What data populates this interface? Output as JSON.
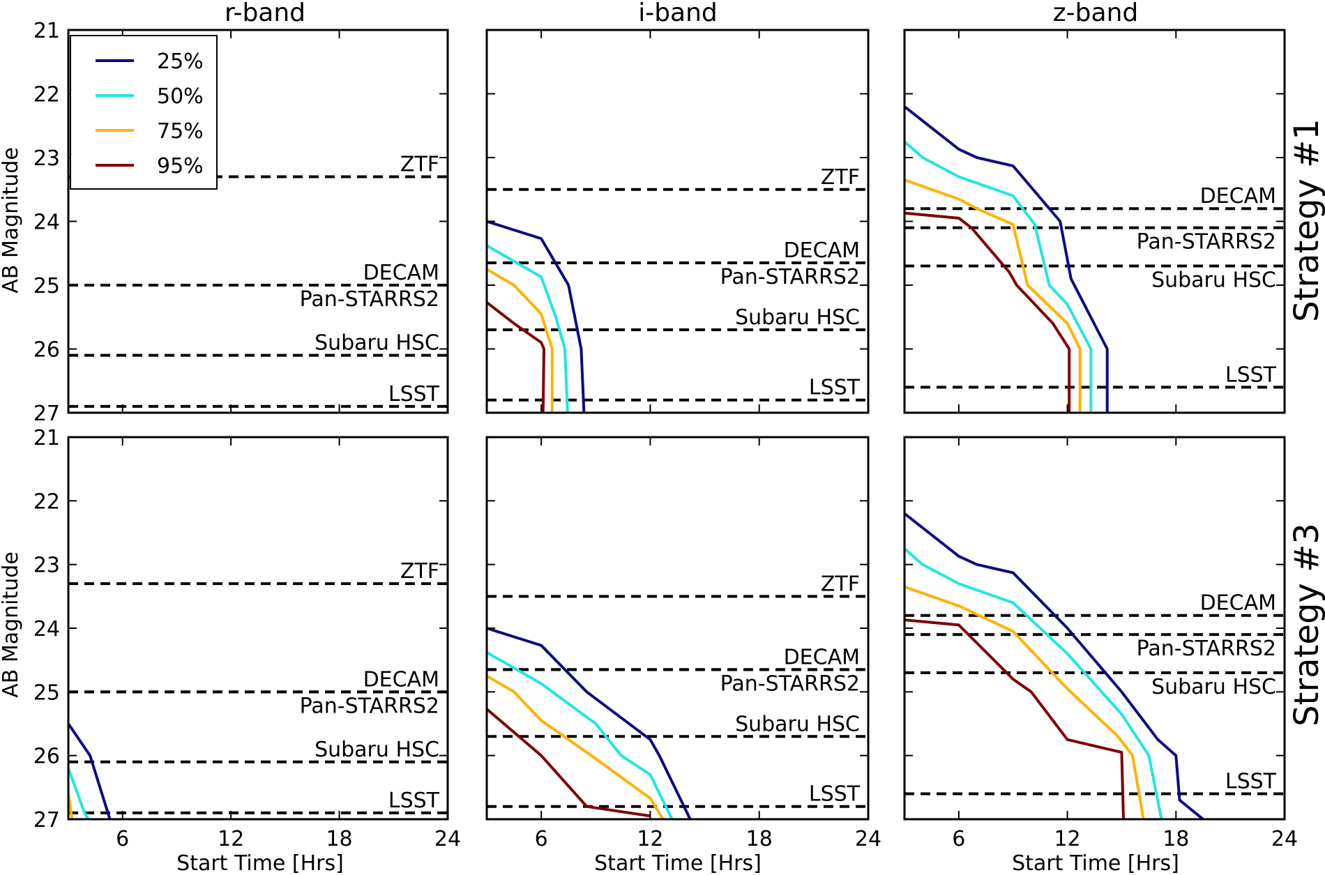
{
  "figure": {
    "column_titles": [
      "r-band",
      "i-band",
      "z-band"
    ],
    "row_labels": [
      "Strategy #1",
      "Strategy #3"
    ],
    "ylabel": "AB Magnitude",
    "xlabel": "Start Time [Hrs]"
  },
  "legend": [
    {
      "label": "25%",
      "color": "#0c0c80"
    },
    {
      "label": "50%",
      "color": "#22e5e5"
    },
    {
      "label": "75%",
      "color": "#ffb300"
    },
    {
      "label": "95%",
      "color": "#7f0000"
    }
  ],
  "chart_data": [
    {
      "type": "line",
      "title": "r-band",
      "row": "Strategy #1",
      "xlabel": "Start Time [Hrs]",
      "ylabel": "AB Magnitude",
      "xlim": [
        3,
        24
      ],
      "ylim": [
        27,
        21
      ],
      "y_inverted": true,
      "xticks": [
        6,
        12,
        18,
        24
      ],
      "yticks": [
        21,
        22,
        23,
        24,
        25,
        26,
        27
      ],
      "thresholds": [
        {
          "name": "ZTF",
          "mag": 23.3
        },
        {
          "name": "DECAM",
          "mag": 25.0
        },
        {
          "name": "Pan-STARRS2",
          "mag": 25.0
        },
        {
          "name": "Subaru HSC",
          "mag": 26.1
        },
        {
          "name": "LSST",
          "mag": 26.9
        }
      ],
      "series": []
    },
    {
      "type": "line",
      "title": "i-band",
      "row": "Strategy #1",
      "xlabel": "Start Time [Hrs]",
      "ylabel": "AB Magnitude",
      "xlim": [
        3,
        24
      ],
      "ylim": [
        27,
        21
      ],
      "y_inverted": true,
      "xticks": [
        6,
        12,
        18,
        24
      ],
      "yticks": [
        21,
        22,
        23,
        24,
        25,
        26,
        27
      ],
      "thresholds": [
        {
          "name": "ZTF",
          "mag": 23.5
        },
        {
          "name": "DECAM",
          "mag": 24.65
        },
        {
          "name": "Pan-STARRS2",
          "mag": 24.65
        },
        {
          "name": "Subaru HSC",
          "mag": 25.7
        },
        {
          "name": "LSST",
          "mag": 26.8
        }
      ],
      "series": [
        {
          "name": "25%",
          "points": [
            [
              3,
              24.0
            ],
            [
              6,
              24.27
            ],
            [
              7.5,
              25.0
            ],
            [
              8.2,
              26.0
            ],
            [
              8.35,
              27.0
            ]
          ]
        },
        {
          "name": "50%",
          "points": [
            [
              3,
              24.38
            ],
            [
              6,
              24.87
            ],
            [
              6.8,
              25.5
            ],
            [
              7.3,
              26.0
            ],
            [
              7.45,
              27.0
            ]
          ]
        },
        {
          "name": "75%",
          "points": [
            [
              3,
              24.75
            ],
            [
              4.5,
              25.0
            ],
            [
              6,
              25.45
            ],
            [
              6.6,
              26.0
            ],
            [
              6.6,
              27.0
            ]
          ]
        },
        {
          "name": "95%",
          "points": [
            [
              3,
              25.27
            ],
            [
              4.5,
              25.6
            ],
            [
              6,
              25.9
            ],
            [
              6.15,
              26.0
            ],
            [
              6.1,
              27.0
            ]
          ]
        }
      ]
    },
    {
      "type": "line",
      "title": "z-band",
      "row": "Strategy #1",
      "xlabel": "Start Time [Hrs]",
      "ylabel": "AB Magnitude",
      "xlim": [
        3,
        24
      ],
      "ylim": [
        27,
        21
      ],
      "y_inverted": true,
      "xticks": [
        6,
        12,
        18,
        24
      ],
      "yticks": [
        21,
        22,
        23,
        24,
        25,
        26,
        27
      ],
      "thresholds": [
        {
          "name": "DECAM",
          "mag": 23.8
        },
        {
          "name": "Pan-STARRS2",
          "mag": 24.1
        },
        {
          "name": "Subaru HSC",
          "mag": 24.7
        },
        {
          "name": "LSST",
          "mag": 26.6
        }
      ],
      "series": [
        {
          "name": "25%",
          "points": [
            [
              3,
              22.2
            ],
            [
              6,
              22.87
            ],
            [
              7,
              23.0
            ],
            [
              9,
              23.13
            ],
            [
              11.6,
              24.0
            ],
            [
              12.2,
              24.9
            ],
            [
              14.2,
              26.0
            ],
            [
              14.2,
              27.0
            ]
          ]
        },
        {
          "name": "50%",
          "points": [
            [
              3,
              22.75
            ],
            [
              4,
              23.0
            ],
            [
              6,
              23.3
            ],
            [
              9,
              23.6
            ],
            [
              10.2,
              24.05
            ],
            [
              11,
              25.0
            ],
            [
              12,
              25.3
            ],
            [
              13.3,
              26.0
            ],
            [
              13.3,
              27.0
            ]
          ]
        },
        {
          "name": "75%",
          "points": [
            [
              3,
              23.35
            ],
            [
              6,
              23.65
            ],
            [
              7,
              23.8
            ],
            [
              9,
              24.05
            ],
            [
              9.8,
              25.0
            ],
            [
              12,
              25.6
            ],
            [
              12.7,
              26.0
            ],
            [
              12.7,
              27.0
            ]
          ]
        },
        {
          "name": "95%",
          "points": [
            [
              3,
              23.87
            ],
            [
              6,
              23.95
            ],
            [
              6.7,
              24.1
            ],
            [
              8.8,
              24.8
            ],
            [
              9.2,
              25.0
            ],
            [
              11.2,
              25.6
            ],
            [
              12.1,
              26.0
            ],
            [
              12.1,
              27.0
            ]
          ]
        }
      ]
    },
    {
      "type": "line",
      "title": "r-band",
      "row": "Strategy #3",
      "xlabel": "Start Time [Hrs]",
      "ylabel": "AB Magnitude",
      "xlim": [
        3,
        24
      ],
      "ylim": [
        27,
        21
      ],
      "y_inverted": true,
      "xticks": [
        6,
        12,
        18,
        24
      ],
      "yticks": [
        21,
        22,
        23,
        24,
        25,
        26,
        27
      ],
      "thresholds": [
        {
          "name": "ZTF",
          "mag": 23.3
        },
        {
          "name": "DECAM",
          "mag": 25.0
        },
        {
          "name": "Pan-STARRS2",
          "mag": 25.0
        },
        {
          "name": "Subaru HSC",
          "mag": 26.1
        },
        {
          "name": "LSST",
          "mag": 26.9
        }
      ],
      "series": [
        {
          "name": "25%",
          "points": [
            [
              3,
              25.5
            ],
            [
              4.2,
              26.0
            ],
            [
              5.3,
              27.0
            ]
          ]
        },
        {
          "name": "50%",
          "points": [
            [
              3,
              26.2
            ],
            [
              3.9,
              26.9
            ],
            [
              4.1,
              27.0
            ]
          ]
        },
        {
          "name": "75%",
          "points": [
            [
              3,
              26.6
            ],
            [
              3.2,
              27.0
            ]
          ]
        }
      ]
    },
    {
      "type": "line",
      "title": "i-band",
      "row": "Strategy #3",
      "xlabel": "Start Time [Hrs]",
      "ylabel": "AB Magnitude",
      "xlim": [
        3,
        24
      ],
      "ylim": [
        27,
        21
      ],
      "y_inverted": true,
      "xticks": [
        6,
        12,
        18,
        24
      ],
      "yticks": [
        21,
        22,
        23,
        24,
        25,
        26,
        27
      ],
      "thresholds": [
        {
          "name": "ZTF",
          "mag": 23.5
        },
        {
          "name": "DECAM",
          "mag": 24.65
        },
        {
          "name": "Pan-STARRS2",
          "mag": 24.65
        },
        {
          "name": "Subaru HSC",
          "mag": 25.7
        },
        {
          "name": "LSST",
          "mag": 26.8
        }
      ],
      "series": [
        {
          "name": "25%",
          "points": [
            [
              3,
              24.0
            ],
            [
              6,
              24.27
            ],
            [
              8.5,
              25.0
            ],
            [
              12,
              25.75
            ],
            [
              12.5,
              26.0
            ],
            [
              14.2,
              27.0
            ]
          ]
        },
        {
          "name": "50%",
          "points": [
            [
              3,
              24.38
            ],
            [
              6,
              24.87
            ],
            [
              9,
              25.5
            ],
            [
              10.4,
              26.0
            ],
            [
              12,
              26.3
            ],
            [
              13.2,
              27.0
            ]
          ]
        },
        {
          "name": "75%",
          "points": [
            [
              3,
              24.75
            ],
            [
              4.5,
              25.0
            ],
            [
              6,
              25.45
            ],
            [
              9,
              26.05
            ],
            [
              12,
              26.67
            ],
            [
              12.7,
              27.0
            ]
          ]
        },
        {
          "name": "95%",
          "points": [
            [
              3,
              25.27
            ],
            [
              6,
              26.0
            ],
            [
              8.5,
              26.8
            ],
            [
              12,
              26.95
            ]
          ]
        }
      ]
    },
    {
      "type": "line",
      "title": "z-band",
      "row": "Strategy #3",
      "xlabel": "Start Time [Hrs]",
      "ylabel": "AB Magnitude",
      "xlim": [
        3,
        24
      ],
      "ylim": [
        27,
        21
      ],
      "y_inverted": true,
      "xticks": [
        6,
        12,
        18,
        24
      ],
      "yticks": [
        21,
        22,
        23,
        24,
        25,
        26,
        27
      ],
      "thresholds": [
        {
          "name": "DECAM",
          "mag": 23.8
        },
        {
          "name": "Pan-STARRS2",
          "mag": 24.1
        },
        {
          "name": "Subaru HSC",
          "mag": 24.7
        },
        {
          "name": "LSST",
          "mag": 26.6
        }
      ],
      "series": [
        {
          "name": "25%",
          "points": [
            [
              3,
              22.2
            ],
            [
              6,
              22.87
            ],
            [
              7,
              23.0
            ],
            [
              9,
              23.13
            ],
            [
              12,
              24.0
            ],
            [
              15,
              25.0
            ],
            [
              17,
              25.75
            ],
            [
              18,
              26.0
            ],
            [
              18.2,
              26.7
            ],
            [
              19.5,
              27.0
            ]
          ]
        },
        {
          "name": "50%",
          "points": [
            [
              3,
              22.75
            ],
            [
              4,
              23.0
            ],
            [
              6,
              23.3
            ],
            [
              9,
              23.6
            ],
            [
              12,
              24.4
            ],
            [
              15,
              25.35
            ],
            [
              16.5,
              26.0
            ],
            [
              17.2,
              27.0
            ]
          ]
        },
        {
          "name": "75%",
          "points": [
            [
              3,
              23.35
            ],
            [
              6,
              23.65
            ],
            [
              9,
              24.05
            ],
            [
              12,
              24.95
            ],
            [
              14.8,
              25.7
            ],
            [
              15.6,
              26.0
            ],
            [
              16.2,
              27.0
            ]
          ]
        },
        {
          "name": "95%",
          "points": [
            [
              3,
              23.87
            ],
            [
              6,
              23.95
            ],
            [
              9,
              24.8
            ],
            [
              10,
              25.0
            ],
            [
              12,
              25.75
            ],
            [
              15,
              25.95
            ],
            [
              15.1,
              27.0
            ]
          ]
        }
      ]
    }
  ]
}
